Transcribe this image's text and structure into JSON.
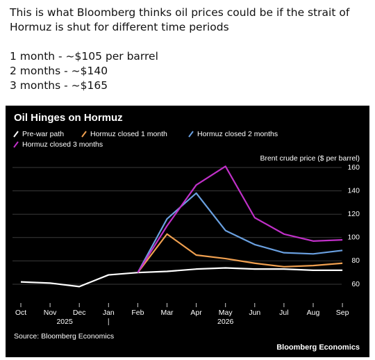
{
  "header": {
    "lines": [
      "This is what Bloomberg thinks oil prices could be if the strait of",
      "Hormuz is shut for different time periods",
      "1 month - ~$105 per barrel",
      "2 months - ~$140",
      "3 months - ~$165"
    ]
  },
  "chart_data": {
    "type": "line",
    "title": "Oil Hinges on Hormuz",
    "y_label": "Brent crude price ($ per barrel)",
    "categories": [
      "Oct",
      "Nov",
      "Dec",
      "Jan",
      "Feb",
      "Mar",
      "Apr",
      "May",
      "Jun",
      "Jul",
      "Aug",
      "Sep"
    ],
    "year_labels": [
      "2025",
      "2026"
    ],
    "series": [
      {
        "name": "Pre-war path",
        "color": "#ffffff",
        "values": [
          62,
          61,
          58,
          68,
          70,
          71,
          73,
          74,
          73,
          73,
          72,
          72
        ]
      },
      {
        "name": "Hormuz closed 1 month",
        "color": "#f0a050",
        "values": [
          null,
          null,
          null,
          null,
          70,
          103,
          85,
          82,
          78,
          75,
          76,
          78
        ]
      },
      {
        "name": "Hormuz closed 2 months",
        "color": "#6aa0e0",
        "values": [
          null,
          null,
          null,
          null,
          70,
          116,
          138,
          106,
          94,
          87,
          86,
          89
        ]
      },
      {
        "name": "Hormuz closed 3 months",
        "color": "#c030c8",
        "values": [
          null,
          null,
          null,
          null,
          70,
          110,
          145,
          161,
          117,
          103,
          97,
          98
        ]
      }
    ],
    "ylim": [
      50,
      170
    ],
    "yticks": [
      60,
      80,
      100,
      120,
      140,
      160
    ],
    "grid": true,
    "source": "Source: Bloomberg Economics",
    "brand": "Bloomberg Economics"
  }
}
